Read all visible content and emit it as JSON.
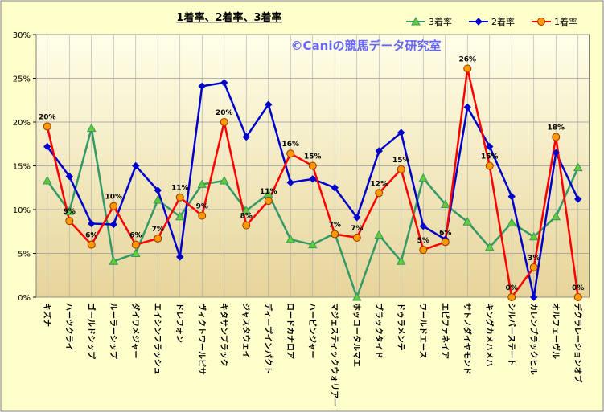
{
  "chart_data": {
    "type": "line",
    "title": "1着率、2着率、3着率",
    "watermark": "©Caniの競馬データ研究室",
    "categories": [
      "キズナ",
      "ハーツクライ",
      "ゴールドシップ",
      "ルーラーシップ",
      "ダイワメジャー",
      "エイシンフラッシュ",
      "ドレフォン",
      "ヴィクトワールピサ",
      "キタサンブラック",
      "ジャスタウェイ",
      "ディープインパクト",
      "ロードカナロア",
      "ハービンジャー",
      "マジェスティックウォリアー",
      "ホッコータルマエ",
      "ブラックタイド",
      "ドゥラメンテ",
      "ワールドエース",
      "エピファネイア",
      "サトノダイヤモンド",
      "キングカメハメハ",
      "シルバーステート",
      "カレンブラックヒル",
      "オルフェーヴル",
      "デクラレーションオブ"
    ],
    "series": [
      {
        "name": "3着率",
        "color": "#339966",
        "marker": "triangle",
        "marker_color": "#66cc33",
        "values": [
          13.3,
          9.8,
          19.3,
          4.1,
          5.0,
          11.1,
          9.2,
          12.9,
          13.3,
          9.9,
          11.8,
          6.6,
          6.0,
          7.3,
          0,
          7.1,
          4.1,
          13.6,
          10.6,
          8.6,
          5.7,
          8.5,
          6.9,
          9.2,
          14.8
        ]
      },
      {
        "name": "2着率",
        "color": "#0000cc",
        "marker": "diamond",
        "marker_color": "#0000cc",
        "values": [
          17.2,
          13.8,
          8.4,
          8.3,
          15.0,
          12.2,
          4.6,
          24.1,
          24.5,
          18.3,
          22.0,
          13.1,
          13.5,
          12.5,
          9.1,
          16.7,
          18.8,
          8.1,
          6.6,
          21.7,
          17.2,
          11.5,
          0,
          16.5,
          11.2
        ]
      },
      {
        "name": "1着率",
        "color": "#ff0000",
        "marker": "circle",
        "marker_color": "#ff9900",
        "values": [
          19.5,
          8.7,
          6.0,
          10.4,
          6.0,
          6.7,
          11.4,
          9.3,
          20.0,
          8.2,
          11.0,
          16.4,
          15.0,
          7.2,
          6.8,
          11.9,
          14.6,
          5.4,
          6.3,
          26.1,
          15.0,
          0,
          3.4,
          18.3,
          0
        ],
        "value_labels": [
          "20%",
          "9%",
          "6%",
          "10%",
          "6%",
          "7%",
          "11%",
          "9%",
          "20%",
          "8%",
          "11%",
          "16%",
          "15%",
          "7%",
          "7%",
          "12%",
          "15%",
          "5%",
          "6%",
          "26%",
          "15%",
          "0%",
          "3%",
          "18%",
          "0%"
        ]
      }
    ],
    "ylim": [
      0,
      30
    ],
    "yticks": [
      {
        "value": 0,
        "label": "0%"
      },
      {
        "value": 5,
        "label": "5%"
      },
      {
        "value": 10,
        "label": "10%"
      },
      {
        "value": 15,
        "label": "15%"
      },
      {
        "value": 20,
        "label": "20%"
      },
      {
        "value": 25,
        "label": "25%"
      },
      {
        "value": 30,
        "label": "30%"
      }
    ],
    "grid": true,
    "legend": "upper right"
  }
}
